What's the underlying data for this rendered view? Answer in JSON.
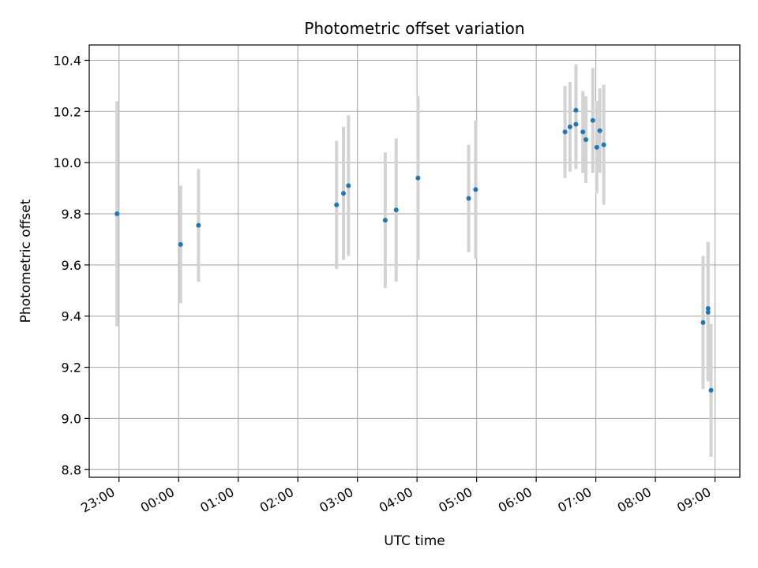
{
  "chart_data": {
    "type": "scatter",
    "title": "Photometric offset variation",
    "xlabel": "UTC time",
    "ylabel": "Photometric offset",
    "grid": true,
    "x_tick_labels": [
      "23:00",
      "00:00",
      "01:00",
      "02:00",
      "03:00",
      "04:00",
      "05:00",
      "06:00",
      "07:00",
      "08:00",
      "09:00"
    ],
    "y_ticks": [
      8.8,
      9.0,
      9.2,
      9.4,
      9.6,
      9.8,
      10.0,
      10.2,
      10.4
    ],
    "y_tick_labels": [
      "8.8",
      "9.0",
      "9.2",
      "9.4",
      "9.6",
      "9.8",
      "10.0",
      "10.2",
      "10.4"
    ],
    "xlim": [
      "22:30",
      "09:25"
    ],
    "ylim": [
      8.77,
      10.46
    ],
    "colors": {
      "point": "#1f77b4",
      "errorbar": "#d3d3d3",
      "grid": "#b0b0b0"
    },
    "points": [
      {
        "x": "22:58",
        "y": 9.8,
        "err": 0.44
      },
      {
        "x": "00:02",
        "y": 9.68,
        "err": 0.23
      },
      {
        "x": "00:20",
        "y": 9.755,
        "err": 0.22
      },
      {
        "x": "02:39",
        "y": 9.835,
        "err": 0.25
      },
      {
        "x": "02:46",
        "y": 9.88,
        "err": 0.26
      },
      {
        "x": "02:51",
        "y": 9.91,
        "err": 0.275
      },
      {
        "x": "03:28",
        "y": 9.775,
        "err": 0.265
      },
      {
        "x": "03:39",
        "y": 9.815,
        "err": 0.28
      },
      {
        "x": "04:01",
        "y": 9.94,
        "err": 0.32
      },
      {
        "x": "04:52",
        "y": 9.86,
        "err": 0.21
      },
      {
        "x": "04:59",
        "y": 9.895,
        "err": 0.27
      },
      {
        "x": "06:29",
        "y": 10.12,
        "err": 0.18
      },
      {
        "x": "06:34",
        "y": 10.14,
        "err": 0.175
      },
      {
        "x": "06:40",
        "y": 10.205,
        "err": 0.18
      },
      {
        "x": "06:40",
        "y": 10.15,
        "err": 0.175
      },
      {
        "x": "06:47",
        "y": 10.12,
        "err": 0.16
      },
      {
        "x": "06:50",
        "y": 10.09,
        "err": 0.17
      },
      {
        "x": "06:57",
        "y": 10.165,
        "err": 0.205
      },
      {
        "x": "07:01",
        "y": 10.06,
        "err": 0.18
      },
      {
        "x": "07:04",
        "y": 10.125,
        "err": 0.165
      },
      {
        "x": "07:08",
        "y": 10.07,
        "err": 0.235
      },
      {
        "x": "08:48",
        "y": 9.375,
        "err": 0.26
      },
      {
        "x": "08:53",
        "y": 9.43,
        "err": 0.26
      },
      {
        "x": "08:53",
        "y": 9.415,
        "err": 0.27
      },
      {
        "x": "08:56",
        "y": 9.11,
        "err": 0.26
      }
    ]
  }
}
